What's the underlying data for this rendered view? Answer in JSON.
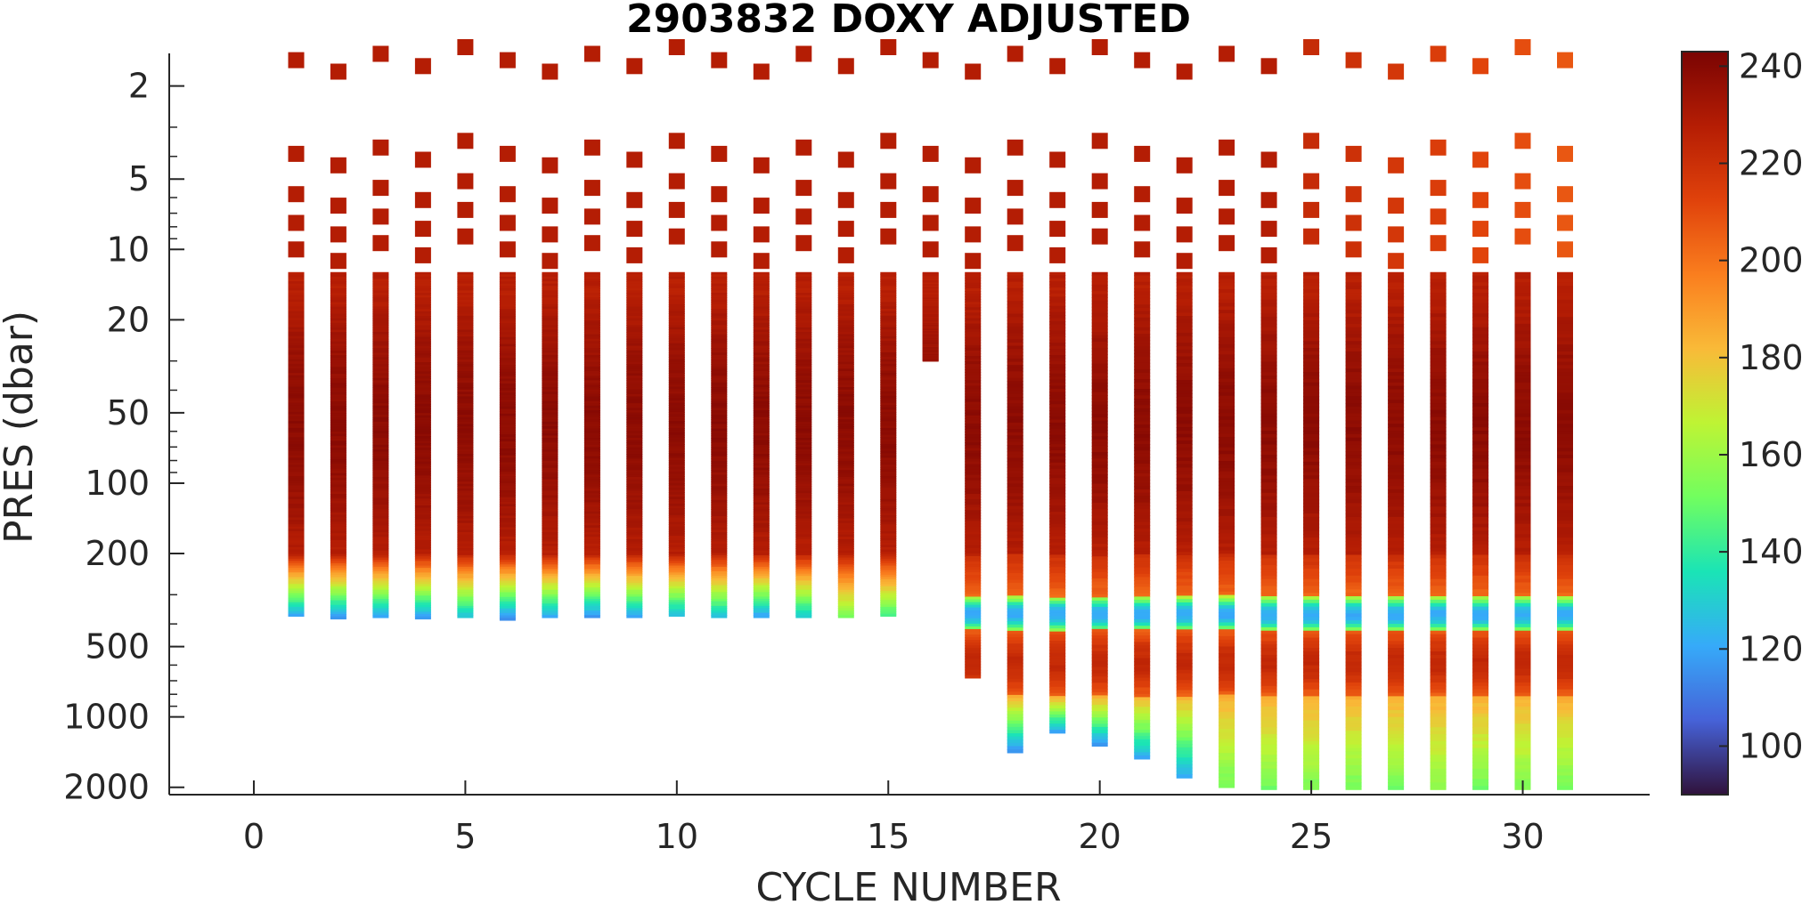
{
  "chart_data": {
    "type": "scatter",
    "title": "2903832  DOXY ADJUSTED",
    "xlabel": "CYCLE NUMBER",
    "ylabel": "PRES (dbar)",
    "xlim": [
      -2,
      33
    ],
    "ylim": [
      1.45,
      2150
    ],
    "y_scale": "log",
    "y_reversed": true,
    "x_ticks": [
      0,
      5,
      10,
      15,
      20,
      25,
      30
    ],
    "x_tick_labels": [
      "0",
      "5",
      "10",
      "15",
      "20",
      "25",
      "30"
    ],
    "y_ticks": [
      2,
      5,
      10,
      20,
      50,
      100,
      200,
      500,
      1000,
      2000
    ],
    "y_tick_labels": [
      "2",
      "5",
      "10",
      "20",
      "50",
      "100",
      "200",
      "500",
      "1000",
      "2000"
    ],
    "colorbar": {
      "colormap": "turbo",
      "range": [
        90,
        243
      ],
      "ticks": [
        100,
        120,
        140,
        160,
        180,
        200,
        220,
        240
      ],
      "tick_labels": [
        "100",
        "120",
        "140",
        "160",
        "180",
        "200",
        "220",
        "240"
      ]
    },
    "grid": false,
    "legend": "none",
    "surface_points": [
      {
        "pressure": 1.55,
        "oxygen": 228
      },
      {
        "pressure": 3.9,
        "oxygen": 228
      },
      {
        "pressure": 5.8,
        "oxygen": 228
      },
      {
        "pressure": 7.7,
        "oxygen": 228
      },
      {
        "pressure": 10,
        "oxygen": 228
      }
    ],
    "profiles": [
      {
        "cycle": 1,
        "max_pressure": 370,
        "deep_oxygen": 118
      },
      {
        "cycle": 2,
        "max_pressure": 380,
        "deep_oxygen": 113
      },
      {
        "cycle": 3,
        "max_pressure": 375,
        "deep_oxygen": 116
      },
      {
        "cycle": 4,
        "max_pressure": 380,
        "deep_oxygen": 114
      },
      {
        "cycle": 5,
        "max_pressure": 375,
        "deep_oxygen": 124
      },
      {
        "cycle": 6,
        "max_pressure": 385,
        "deep_oxygen": 110
      },
      {
        "cycle": 7,
        "max_pressure": 375,
        "deep_oxygen": 118
      },
      {
        "cycle": 8,
        "max_pressure": 375,
        "deep_oxygen": 113
      },
      {
        "cycle": 9,
        "max_pressure": 375,
        "deep_oxygen": 117
      },
      {
        "cycle": 10,
        "max_pressure": 370,
        "deep_oxygen": 122
      },
      {
        "cycle": 11,
        "max_pressure": 375,
        "deep_oxygen": 124
      },
      {
        "cycle": 12,
        "max_pressure": 375,
        "deep_oxygen": 116
      },
      {
        "cycle": 13,
        "max_pressure": 375,
        "deep_oxygen": 126
      },
      {
        "cycle": 14,
        "max_pressure": 375,
        "deep_oxygen": 150
      },
      {
        "cycle": 15,
        "max_pressure": 370,
        "deep_oxygen": 140
      },
      {
        "cycle": 16,
        "max_pressure": 30,
        "deep_oxygen": 236
      },
      {
        "cycle": 17,
        "max_pressure": 680,
        "deep_oxygen": 212
      },
      {
        "cycle": 18,
        "max_pressure": 1420,
        "deep_oxygen": 112
      },
      {
        "cycle": 19,
        "max_pressure": 1170,
        "deep_oxygen": 115
      },
      {
        "cycle": 20,
        "max_pressure": 1330,
        "deep_oxygen": 113
      },
      {
        "cycle": 21,
        "max_pressure": 1510,
        "deep_oxygen": 118
      },
      {
        "cycle": 22,
        "max_pressure": 1820,
        "deep_oxygen": 118
      },
      {
        "cycle": 23,
        "max_pressure": 2000,
        "deep_oxygen": 150
      },
      {
        "cycle": 24,
        "max_pressure": 2040,
        "deep_oxygen": 150
      },
      {
        "cycle": 25,
        "max_pressure": 2040,
        "deep_oxygen": 152
      },
      {
        "cycle": 26,
        "max_pressure": 2040,
        "deep_oxygen": 150
      },
      {
        "cycle": 27,
        "max_pressure": 2040,
        "deep_oxygen": 150
      },
      {
        "cycle": 28,
        "max_pressure": 2040,
        "deep_oxygen": 155
      },
      {
        "cycle": 29,
        "max_pressure": 2040,
        "deep_oxygen": 150
      },
      {
        "cycle": 30,
        "max_pressure": 2040,
        "deep_oxygen": 152
      },
      {
        "cycle": 31,
        "max_pressure": 2040,
        "deep_oxygen": 150
      }
    ]
  }
}
